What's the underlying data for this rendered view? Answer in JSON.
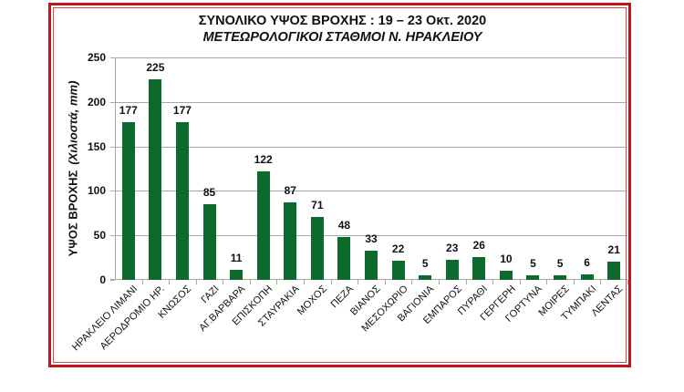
{
  "title": {
    "line1": "ΣΥΝΟΛΙΚΟ ΥΨΟΣ ΒΡΟΧΗΣ  :  19 – 23 Οκτ. 2020",
    "line2": "ΜΕΤΕΩΡΟΛΟΓΙΚΟΙ ΣΤΑΘΜΟΙ  Ν. ΗΡΑΚΛΕΙΟΥ"
  },
  "axis": {
    "ylabel_main": "ΥΨΟΣ ΒΡΟΧΗΣ",
    "ylabel_unit": "(Χιλιοστά, mm)",
    "yticks": [
      "0",
      "50",
      "100",
      "150",
      "200",
      "250"
    ]
  },
  "colors": {
    "bar": "#0b6a2c",
    "frame": "#c0141c"
  },
  "chart_data": {
    "type": "bar",
    "title": "ΣΥΝΟΛΙΚΟ ΥΨΟΣ ΒΡΟΧΗΣ : 19 – 23 Οκτ. 2020 — ΜΕΤΕΩΡΟΛΟΓΙΚΟΙ ΣΤΑΘΜΟΙ Ν. ΗΡΑΚΛΕΙΟΥ",
    "xlabel": "",
    "ylabel": "ΥΨΟΣ ΒΡΟΧΗΣ (Χιλιοστά, mm)",
    "ylim": [
      0,
      250
    ],
    "yticks": [
      0,
      50,
      100,
      150,
      200,
      250
    ],
    "grid": true,
    "legend": "none",
    "data_labels": true,
    "categories": [
      "ΗΡΑΚΛΕΙΟ ΛΙΜΑΝΙ",
      "ΑΕΡΟΔΡΟΜΙΟ ΗΡ.",
      "ΚΝΩΣΟΣ",
      "ΓΑΖΙ",
      "ΑΓ.ΒΑΡΒΑΡΑ",
      "ΕΠΙΣΚΟΠΗ",
      "ΣΤΑΥΡΑΚΙΑ",
      "ΜΟΧΟΣ",
      "ΠΕΖΑ",
      "ΒΙΑΝΟΣ",
      "ΜΕΣΟΧΩΡΙΟ",
      "ΒΑΓΙΟΝΙΑ",
      "ΕΜΠΑΡΟΣ",
      "ΠΥΡΑΘΙ",
      "ΓΕΡΓΕΡΗ",
      "ΓΟΡΤΥΝΑ",
      "ΜΟΙΡΕΣ",
      "ΤΥΜΠΑΚΙ",
      "ΛΕΝΤΑΣ"
    ],
    "values": [
      177,
      225,
      177,
      85,
      11,
      122,
      87,
      71,
      48,
      33,
      22,
      5,
      23,
      26,
      10,
      5,
      5,
      6,
      21
    ]
  }
}
